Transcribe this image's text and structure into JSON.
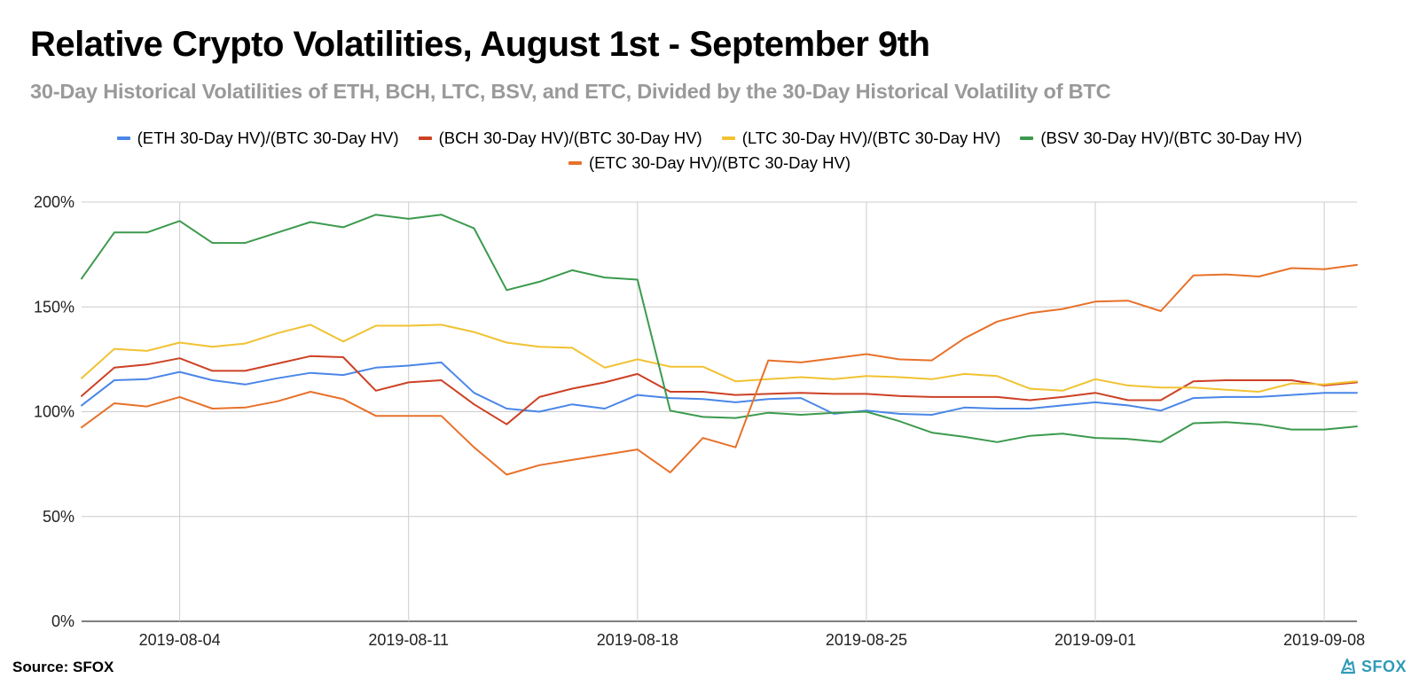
{
  "title": "Relative Crypto Volatilities, August 1st - September 9th",
  "subtitle": "30-Day Historical Volatilities of ETH, BCH, LTC, BSV, and ETC, Divided by the 30-Day Historical Volatility of BTC",
  "source": "Source: SFOX",
  "brand": "SFOX",
  "brand_icon": "sfox-logo-icon",
  "colors": {
    "eth": "#4a86e8",
    "bch": "#cc4125",
    "ltc": "#f1c232",
    "bsv": "#3c9a4e",
    "etc": "#e8712a",
    "grid": "#cccccc",
    "brand": "#2f9bb8"
  },
  "chart_data": {
    "type": "line",
    "title": "Relative Crypto Volatilities, August 1st - September 9th",
    "subtitle": "30-Day Historical Volatilities of ETH, BCH, LTC, BSV, and ETC, Divided by the 30-Day Historical Volatility of BTC",
    "x_start": "2019-08-01",
    "x_end": "2019-09-09",
    "x_ticks": [
      "2019-08-04",
      "2019-08-11",
      "2019-08-18",
      "2019-08-25",
      "2019-09-01",
      "2019-09-08"
    ],
    "y_ticks": [
      "0%",
      "50%",
      "100%",
      "150%",
      "200%"
    ],
    "ylim": [
      0,
      200
    ],
    "grid": true,
    "legend_position": "top",
    "x": [
      "2019-08-01",
      "2019-08-02",
      "2019-08-03",
      "2019-08-04",
      "2019-08-05",
      "2019-08-06",
      "2019-08-07",
      "2019-08-08",
      "2019-08-09",
      "2019-08-10",
      "2019-08-11",
      "2019-08-12",
      "2019-08-13",
      "2019-08-14",
      "2019-08-15",
      "2019-08-16",
      "2019-08-17",
      "2019-08-18",
      "2019-08-19",
      "2019-08-20",
      "2019-08-21",
      "2019-08-22",
      "2019-08-23",
      "2019-08-24",
      "2019-08-25",
      "2019-08-26",
      "2019-08-27",
      "2019-08-28",
      "2019-08-29",
      "2019-08-30",
      "2019-08-31",
      "2019-09-01",
      "2019-09-02",
      "2019-09-03",
      "2019-09-04",
      "2019-09-05",
      "2019-09-06",
      "2019-09-07",
      "2019-09-08",
      "2019-09-09"
    ],
    "series": [
      {
        "key": "eth",
        "name": "(ETH 30-Day HV)/(BTC 30-Day HV)",
        "values": [
          103,
          115,
          115.5,
          119,
          115,
          113,
          116,
          118.5,
          117.5,
          121,
          122,
          123.5,
          109,
          101.5,
          100,
          103.5,
          101.5,
          108,
          106.5,
          106,
          104.5,
          106,
          106.5,
          99,
          100.5,
          99,
          98.5,
          102,
          101.5,
          101.5,
          103,
          104.5,
          103,
          100.5,
          106.5,
          107,
          107,
          108,
          109,
          109
        ]
      },
      {
        "key": "bch",
        "name": "(BCH 30-Day HV)/(BTC 30-Day HV)",
        "values": [
          107.5,
          121,
          122.5,
          125.5,
          119.5,
          119.5,
          123,
          126.5,
          126,
          110,
          114,
          115,
          103.5,
          94,
          107,
          111,
          114,
          118,
          109.5,
          109.5,
          108,
          108.5,
          109,
          108.5,
          108.5,
          107.5,
          107,
          107,
          107,
          105.5,
          107,
          109,
          105.5,
          105.5,
          114.5,
          115,
          115,
          115,
          112.5,
          114
        ]
      },
      {
        "key": "ltc",
        "name": "(LTC 30-Day HV)/(BTC 30-Day HV)",
        "values": [
          116,
          130,
          129,
          133,
          131,
          132.5,
          137.5,
          141.5,
          133.5,
          141,
          141,
          141.5,
          138,
          133,
          131,
          130.5,
          121,
          125,
          121.5,
          121.5,
          114.5,
          115.5,
          116.5,
          115.5,
          117,
          116.5,
          115.5,
          118,
          117,
          111,
          110,
          115.5,
          112.5,
          111.5,
          111.5,
          110.5,
          109.5,
          113.5,
          113,
          114.5
        ]
      },
      {
        "key": "bsv",
        "name": "(BSV 30-Day HV)/(BTC 30-Day HV)",
        "values": [
          163.5,
          185.5,
          185.5,
          191,
          180.5,
          180.5,
          185.5,
          190.5,
          188,
          194,
          192,
          194,
          187.5,
          158,
          162,
          167.5,
          164,
          163,
          100.5,
          97.5,
          97,
          99.5,
          98.5,
          99.5,
          100,
          95.5,
          90,
          88,
          85.5,
          88.5,
          89.5,
          87.5,
          87,
          85.5,
          94.5,
          95,
          94,
          91.5,
          91.5,
          93
        ]
      },
      {
        "key": "etc",
        "name": "(ETC 30-Day HV)/(BTC 30-Day HV)",
        "values": [
          92.5,
          104,
          102.5,
          107,
          101.5,
          102,
          105,
          109.5,
          106,
          98,
          98,
          98,
          83,
          70,
          74.5,
          77,
          79.5,
          82,
          71,
          87.5,
          83,
          124.5,
          123.5,
          125.5,
          127.5,
          125,
          124.5,
          135,
          143,
          147,
          149,
          152.5,
          153,
          148,
          165,
          165.5,
          164.5,
          168.5,
          168,
          170
        ]
      }
    ]
  }
}
